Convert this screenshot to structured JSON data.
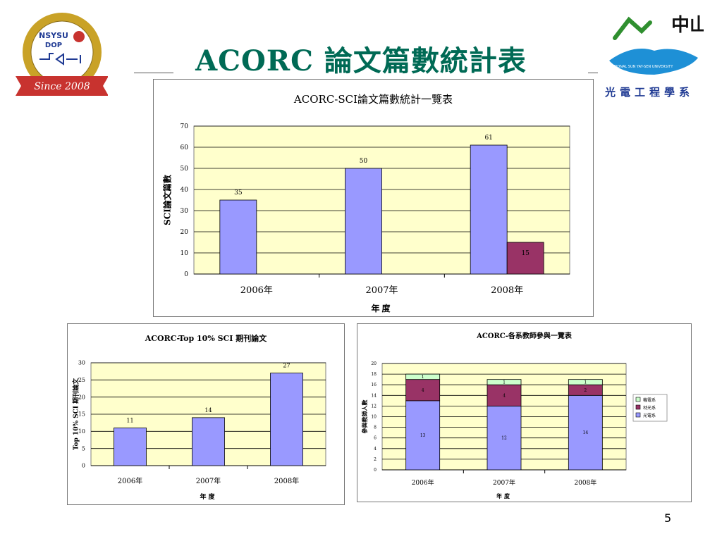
{
  "slide": {
    "title": "ACORC  論文篇數統計表",
    "department": "光電工程學系",
    "page_number": "5",
    "left_logo": {
      "top_text": "NSYSU",
      "sub_text": "DOP",
      "banner_text": "Since 2008",
      "colors": {
        "gold": "#c9a227",
        "red": "#c8332f",
        "blue": "#1f3a93"
      }
    },
    "right_logo": {
      "characters": "中山",
      "caption": "NATIONAL SUN YAT-SEN UNIVERSITY",
      "colors": {
        "green": "#2f8f2f",
        "blue": "#1e90d6",
        "black": "#111111"
      }
    }
  },
  "chart_data": [
    {
      "type": "bar",
      "title": "ACORC-SCI論文篇數統計一覽表",
      "xlabel": "年度",
      "ylabel": "SCI論文篇數",
      "ylim": [
        0,
        70
      ],
      "yticks": [
        0,
        10,
        20,
        30,
        40,
        50,
        60,
        70
      ],
      "categories": [
        "2006年",
        "2007年",
        "2008年"
      ],
      "series": [
        {
          "values": [
            35,
            50,
            61
          ],
          "color": "#9999ff"
        },
        {
          "values": [
            null,
            null,
            15
          ],
          "color": "#993366"
        }
      ],
      "data_labels": true,
      "plot_background": "#ffffcc",
      "grid": true
    },
    {
      "type": "bar",
      "title": "ACORC-Top 10% SCI 期刊論文",
      "xlabel": "年度",
      "ylabel": "Top 10% SCI 期刊論文",
      "ylim": [
        0,
        30
      ],
      "yticks": [
        0,
        5,
        10,
        15,
        20,
        25,
        30
      ],
      "categories": [
        "2006年",
        "2007年",
        "2008年"
      ],
      "series": [
        {
          "values": [
            11,
            14,
            27
          ],
          "color": "#9999ff"
        }
      ],
      "data_labels": true,
      "plot_background": "#ffffcc",
      "grid": true
    },
    {
      "type": "bar",
      "stacked": true,
      "title": "ACORC-各系教師參與一覽表",
      "xlabel": "年度",
      "ylabel": "參與教師人數",
      "ylim": [
        0,
        20
      ],
      "yticks": [
        0,
        2,
        4,
        6,
        8,
        10,
        12,
        14,
        16,
        18,
        20
      ],
      "categories": [
        "2006年",
        "2007年",
        "2008年"
      ],
      "series": [
        {
          "name": "光電系",
          "values": [
            13,
            12,
            14
          ],
          "color": "#9999ff"
        },
        {
          "name": "材光系",
          "values": [
            4,
            4,
            2
          ],
          "color": "#993366"
        },
        {
          "name": "機電系",
          "values": [
            1,
            1,
            1
          ],
          "color": "#ccffcc"
        }
      ],
      "legend": {
        "position": "right",
        "order": [
          "機電系",
          "材光系",
          "光電系"
        ]
      },
      "data_labels": true,
      "plot_background": "#ffffcc",
      "grid": true
    }
  ]
}
